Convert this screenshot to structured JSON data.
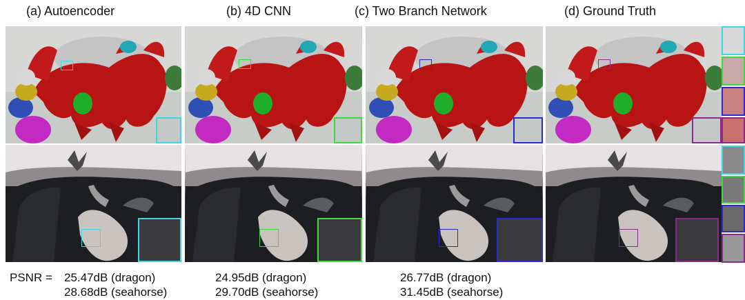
{
  "columns": [
    {
      "title": "(a) Autoencoder",
      "accent": "#3fd6e0"
    },
    {
      "title": "(b) 4D CNN",
      "accent": "#3fd93f"
    },
    {
      "title": "(c) Two Branch Network",
      "accent": "#2a2ad0"
    },
    {
      "title": "(d) Ground Truth",
      "accent": "#8a2a8a"
    }
  ],
  "psnr": {
    "prefix": "PSNR = ",
    "rows": [
      {
        "dragon": "25.47dB (dragon)",
        "seahorse": "28.68dB (seahorse)"
      },
      {
        "dragon": "24.95dB (dragon)",
        "seahorse": "29.70dB (seahorse)"
      },
      {
        "dragon": "26.77dB (dragon)",
        "seahorse": "31.45dB (seahorse)"
      }
    ]
  }
}
